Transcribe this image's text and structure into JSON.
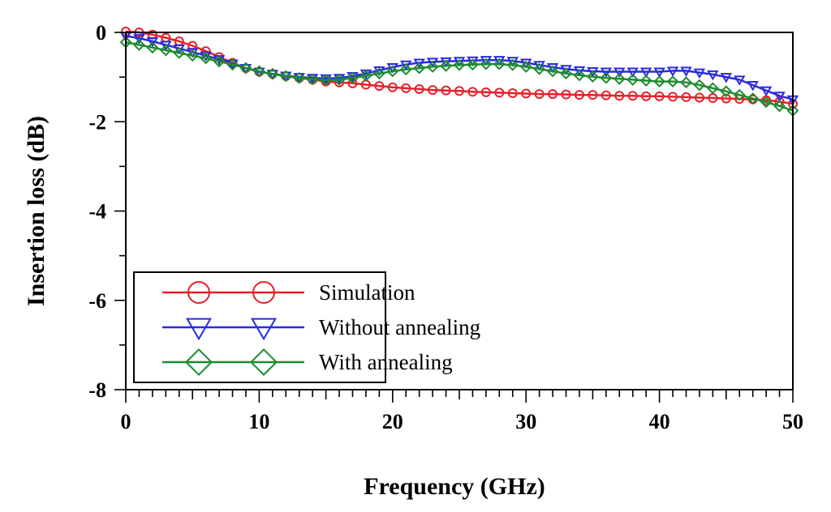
{
  "chart_data": {
    "type": "line",
    "title": "",
    "xlabel": "Frequency (GHz)",
    "ylabel": "Insertion loss (dB)",
    "xlim": [
      0,
      50
    ],
    "ylim": [
      -8,
      0
    ],
    "xticks": [
      0,
      10,
      20,
      30,
      40,
      50
    ],
    "yticks": [
      0,
      -2,
      -4,
      -6,
      -8
    ],
    "grid": false,
    "legend_position": "bottom-left",
    "series": [
      {
        "name": "Simulation",
        "color": "#e8202a",
        "marker": "circle",
        "x": [
          0,
          1,
          2,
          3,
          4,
          5,
          6,
          7,
          8,
          9,
          10,
          11,
          12,
          13,
          14,
          15,
          16,
          17,
          18,
          19,
          20,
          21,
          22,
          23,
          24,
          25,
          26,
          27,
          28,
          29,
          30,
          31,
          32,
          33,
          34,
          35,
          36,
          37,
          38,
          39,
          40,
          41,
          42,
          43,
          44,
          45,
          46,
          47,
          48,
          49,
          50
        ],
        "values": [
          0.02,
          0.0,
          -0.05,
          -0.12,
          -0.2,
          -0.3,
          -0.42,
          -0.55,
          -0.68,
          -0.8,
          -0.88,
          -0.93,
          -0.98,
          -1.02,
          -1.06,
          -1.1,
          -1.12,
          -1.14,
          -1.17,
          -1.2,
          -1.23,
          -1.25,
          -1.27,
          -1.29,
          -1.3,
          -1.31,
          -1.33,
          -1.34,
          -1.35,
          -1.36,
          -1.37,
          -1.38,
          -1.38,
          -1.39,
          -1.4,
          -1.4,
          -1.41,
          -1.42,
          -1.42,
          -1.43,
          -1.43,
          -1.44,
          -1.45,
          -1.46,
          -1.47,
          -1.48,
          -1.49,
          -1.5,
          -1.52,
          -1.55,
          -1.6
        ]
      },
      {
        "name": "Without annealing",
        "color": "#2a2ae0",
        "marker": "triangle-down",
        "x": [
          0,
          1,
          2,
          3,
          4,
          5,
          6,
          7,
          8,
          9,
          10,
          11,
          12,
          13,
          14,
          15,
          16,
          17,
          18,
          19,
          20,
          21,
          22,
          23,
          24,
          25,
          26,
          27,
          28,
          29,
          30,
          31,
          32,
          33,
          34,
          35,
          36,
          37,
          38,
          39,
          40,
          41,
          42,
          43,
          44,
          45,
          46,
          47,
          48,
          49,
          50
        ],
        "values": [
          -0.08,
          -0.13,
          -0.2,
          -0.28,
          -0.36,
          -0.44,
          -0.52,
          -0.6,
          -0.7,
          -0.8,
          -0.88,
          -0.93,
          -0.97,
          -1.0,
          -1.02,
          -1.03,
          -1.02,
          -0.98,
          -0.92,
          -0.85,
          -0.78,
          -0.72,
          -0.68,
          -0.66,
          -0.65,
          -0.64,
          -0.63,
          -0.62,
          -0.62,
          -0.64,
          -0.68,
          -0.73,
          -0.78,
          -0.82,
          -0.85,
          -0.87,
          -0.88,
          -0.88,
          -0.88,
          -0.88,
          -0.88,
          -0.86,
          -0.86,
          -0.9,
          -0.94,
          -1.0,
          -1.06,
          -1.18,
          -1.3,
          -1.42,
          -1.5
        ]
      },
      {
        "name": "With annealing",
        "color": "#1e8c2e",
        "marker": "diamond",
        "x": [
          0,
          1,
          2,
          3,
          4,
          5,
          6,
          7,
          8,
          9,
          10,
          11,
          12,
          13,
          14,
          15,
          16,
          17,
          18,
          19,
          20,
          21,
          22,
          23,
          24,
          25,
          26,
          27,
          28,
          29,
          30,
          31,
          32,
          33,
          34,
          35,
          36,
          37,
          38,
          39,
          40,
          41,
          42,
          43,
          44,
          45,
          46,
          47,
          48,
          49,
          50
        ],
        "values": [
          -0.22,
          -0.28,
          -0.34,
          -0.4,
          -0.46,
          -0.52,
          -0.58,
          -0.65,
          -0.72,
          -0.8,
          -0.87,
          -0.93,
          -0.98,
          -1.02,
          -1.05,
          -1.07,
          -1.06,
          -1.02,
          -0.97,
          -0.92,
          -0.87,
          -0.83,
          -0.8,
          -0.77,
          -0.75,
          -0.73,
          -0.72,
          -0.71,
          -0.71,
          -0.73,
          -0.77,
          -0.82,
          -0.87,
          -0.92,
          -0.96,
          -0.99,
          -1.02,
          -1.04,
          -1.06,
          -1.08,
          -1.1,
          -1.1,
          -1.12,
          -1.18,
          -1.25,
          -1.32,
          -1.4,
          -1.48,
          -1.56,
          -1.65,
          -1.75
        ]
      }
    ]
  }
}
